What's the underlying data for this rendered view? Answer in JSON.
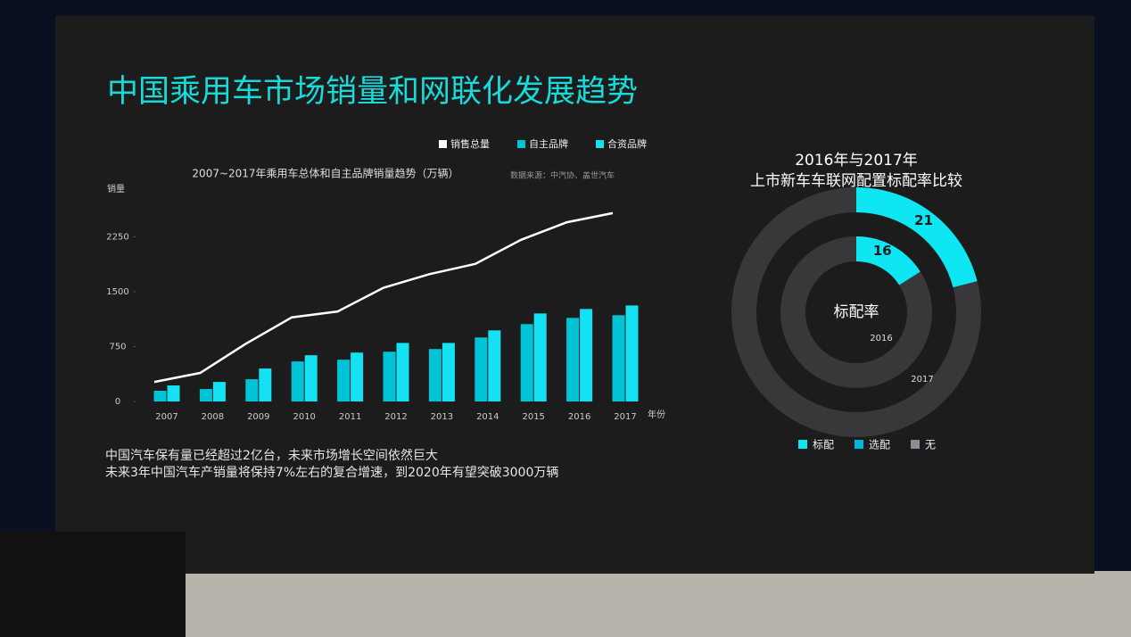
{
  "slide_title": "中国乘用车市场销量和网联化发展趋势",
  "notes": [
    "中国汽车保有量已经超过2亿台，未来市场增长空间依然巨大",
    "未来3年中国汽车产销量将保持7%左右的复合增速，到2020年有望突破3000万辆"
  ],
  "chart_data": [
    {
      "type": "bar",
      "title": "2007~2017年乘用车总体和自主品牌销量趋势（万辆）",
      "source": "数据来源：中汽协、盖世汽车",
      "y_label": "销量",
      "x_label": "年份",
      "categories": [
        "2007",
        "2008",
        "2009",
        "2010",
        "2011",
        "2012",
        "2013",
        "2014",
        "2015",
        "2016",
        "2017"
      ],
      "series": [
        {
          "name": "销售总量",
          "color": "#ffffff",
          "type": "line",
          "values": [
            267,
            390,
            790,
            1150,
            1230,
            1555,
            1740,
            1880,
            2210,
            2450,
            2575
          ]
        },
        {
          "name": "自主品牌",
          "color": "#00c4d6",
          "type": "bar",
          "values": [
            146,
            170,
            304,
            547,
            571,
            680,
            717,
            875,
            1057,
            1142,
            1179
          ]
        },
        {
          "name": "合资品牌",
          "color": "#14e2f2",
          "type": "bar",
          "values": [
            219,
            267,
            450,
            632,
            668,
            800,
            800,
            972,
            1203,
            1264,
            1312
          ]
        }
      ],
      "ylim": [
        0,
        2500
      ],
      "yticks": [
        0,
        750,
        1500,
        2250
      ]
    },
    {
      "type": "radial",
      "title": [
        "2016年与2017年",
        "上市新车车联网配置标配率比较"
      ],
      "center_label": "标配率",
      "categories": [
        "2016",
        "2017"
      ],
      "values": [
        16,
        21
      ],
      "legend": [
        {
          "name": "标配",
          "color": "#0ee6f2"
        },
        {
          "name": "选配",
          "color": "#00b4dc"
        },
        {
          "name": "无",
          "color": "#8c8c96"
        }
      ]
    }
  ]
}
